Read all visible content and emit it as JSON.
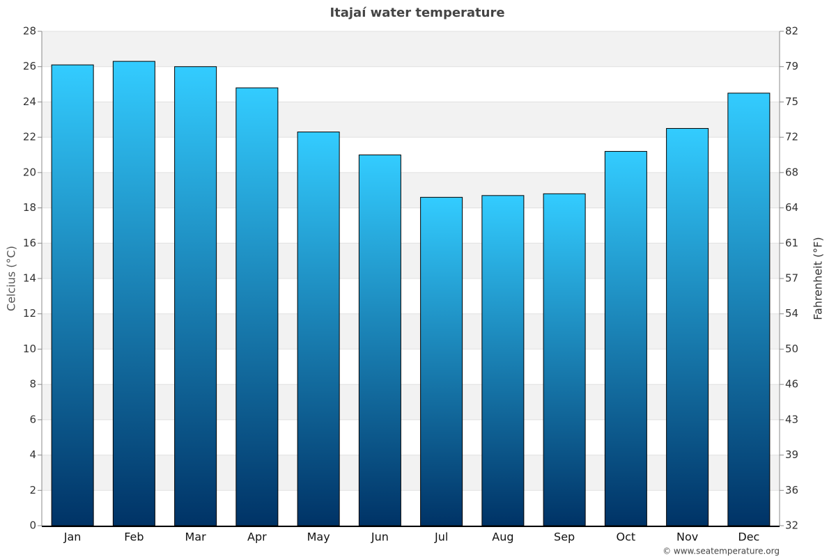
{
  "chart_data": {
    "type": "bar",
    "title": "Itajaí water temperature",
    "ylabel": "Celcius (°C)",
    "y2label": "Fahrenheit (°F)",
    "categories": [
      "Jan",
      "Feb",
      "Mar",
      "Apr",
      "May",
      "Jun",
      "Jul",
      "Aug",
      "Sep",
      "Oct",
      "Nov",
      "Dec"
    ],
    "values": [
      26.1,
      26.3,
      26.0,
      24.8,
      22.3,
      21.0,
      18.6,
      18.7,
      18.8,
      21.2,
      22.5,
      24.5
    ],
    "gradient": [
      "#33ccff",
      "#003366"
    ],
    "ylim": [
      0,
      28
    ],
    "yticks": [
      0,
      2,
      4,
      6,
      8,
      10,
      12,
      14,
      16,
      18,
      20,
      22,
      24,
      26,
      28
    ],
    "y2lim": [
      32,
      82.4
    ],
    "y2ticks": [
      32,
      {
        "value": 35.6,
        "label": "36"
      },
      {
        "value": 39.2,
        "label": "39"
      },
      {
        "value": 42.8,
        "label": "43"
      },
      {
        "value": 46.4,
        "label": "46"
      },
      50,
      {
        "value": 53.6,
        "label": "54"
      },
      {
        "value": 57.2,
        "label": "57"
      },
      {
        "value": 60.8,
        "label": "61"
      },
      {
        "value": 64.4,
        "label": "64"
      },
      68,
      {
        "value": 71.6,
        "label": "72"
      },
      {
        "value": 75.2,
        "label": "75"
      },
      {
        "value": 78.8,
        "label": "79"
      },
      {
        "value": 82.4,
        "label": "82"
      }
    ],
    "grid": true,
    "credit": "© www.seatemperature.org"
  }
}
